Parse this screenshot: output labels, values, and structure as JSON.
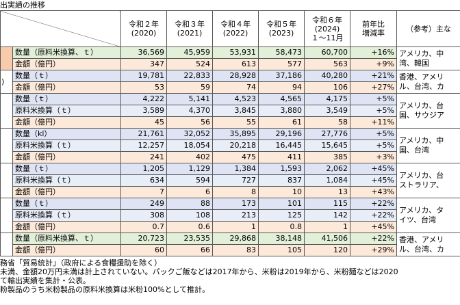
{
  "header": {
    "title": "出実績の推移"
  },
  "table": {
    "columns": [
      "令和２年\n(2020)",
      "令和３年\n(2021)",
      "令和４年\n(2022)",
      "令和５年\n(2023)",
      "令和６年\n(2024)\n１〜11月",
      "前年比\n増減率",
      "（参考）主な"
    ],
    "groups": [
      {
        "rows": [
          {
            "item": "数量（原料米換算、ｔ）",
            "values": [
              "36,569",
              "45,959",
              "53,931",
              "58,473",
              "60,700"
            ],
            "change": "+16%"
          },
          {
            "item": "金額（億円）",
            "values": [
              "347",
              "524",
              "613",
              "577",
              "563"
            ],
            "change": "+9%"
          }
        ],
        "reference": "アメリカ、中\n湾、韓国"
      },
      {
        "label": ")",
        "rows": [
          {
            "item": "数量（ｔ）",
            "values": [
              "19,781",
              "22,833",
              "28,928",
              "37,186",
              "40,280"
            ],
            "change": "+21%"
          },
          {
            "item": "金額（億円）",
            "values": [
              "53",
              "59",
              "74",
              "94",
              "106"
            ],
            "change": "+27%"
          }
        ],
        "reference": "香港、アメリ\nル、台湾、カ"
      },
      {
        "rows": [
          {
            "item": "数量（ｔ）",
            "values": [
              "4,222",
              "5,141",
              "4,523",
              "4,565",
              "4,175"
            ],
            "change": "+5%"
          },
          {
            "item": "原料米換算（ｔ）",
            "values": [
              "3,589",
              "4,370",
              "3,845",
              "3,880",
              "3,549"
            ],
            "change": "+5%"
          },
          {
            "item": "金額（億円）",
            "values": [
              "45",
              "56",
              "55",
              "61",
              "58"
            ],
            "change": "+11%"
          }
        ],
        "reference": "アメリカ、台\n国、サウジア"
      },
      {
        "rows": [
          {
            "item": "数量（kl）",
            "values": [
              "21,761",
              "32,052",
              "35,895",
              "29,196",
              "27,776"
            ],
            "change": "+5%"
          },
          {
            "item": "原料米換算（ｔ）",
            "values": [
              "12,257",
              "18,054",
              "20,218",
              "16,445",
              "15,645"
            ],
            "change": "+5%"
          },
          {
            "item": "金額（億円）",
            "values": [
              "241",
              "402",
              "475",
              "411",
              "385"
            ],
            "change": "+3%"
          }
        ],
        "reference": "アメリカ、中\n国、台湾"
      },
      {
        "rows": [
          {
            "item": "数量（ｔ）",
            "values": [
              "1,205",
              "1,129",
              "1,384",
              "1,593",
              "2,062"
            ],
            "change": "+45%"
          },
          {
            "item": "原料米換算（ｔ）",
            "values": [
              "634",
              "594",
              "727",
              "837",
              "1,084"
            ],
            "change": "+45%"
          },
          {
            "item": "金額（億円）",
            "values": [
              "7",
              "6",
              "8",
              "10",
              "13"
            ],
            "change": "+43%"
          }
        ],
        "reference": "アメリカ、台\nストラリア、"
      },
      {
        "rows": [
          {
            "item": "数量（ｔ）",
            "values": [
              "249",
              "88",
              "173",
              "101",
              "115"
            ],
            "change": "+22%"
          },
          {
            "item": "原料米換算（ｔ）",
            "values": [
              "308",
              "108",
              "213",
              "125",
              "142"
            ],
            "change": "+22%"
          },
          {
            "item": "金額（億円）",
            "values": [
              "0.7",
              "0.6",
              "1",
              "0.8",
              "1"
            ],
            "change": "+45%"
          }
        ],
        "reference": "アメリカ、タ\nイツ、台湾"
      },
      {
        "rows": [
          {
            "item": "数量（原料米換算、ｔ）",
            "values": [
              "20,723",
              "23,535",
              "29,868",
              "38,148",
              "41,506"
            ],
            "change": "+22%"
          },
          {
            "item": "金額（億円）",
            "values": [
              "60",
              "66",
              "83",
              "105",
              "120"
            ],
            "change": "+29%"
          }
        ],
        "reference": "香港、アメリ\nル、台湾、カ"
      }
    ]
  },
  "notes": [
    "務省「貿易統計」（政府による食糧援助を除く）",
    "未満、金額20万円未満は計上されていない。パックご飯などは2017年から、米粉は2019年から、米粉麺などは2020",
    "て輸出実績を集計・公表。",
    "粉製品のうち米粉製品の原料米換算は米粉100%として推計。"
  ]
}
